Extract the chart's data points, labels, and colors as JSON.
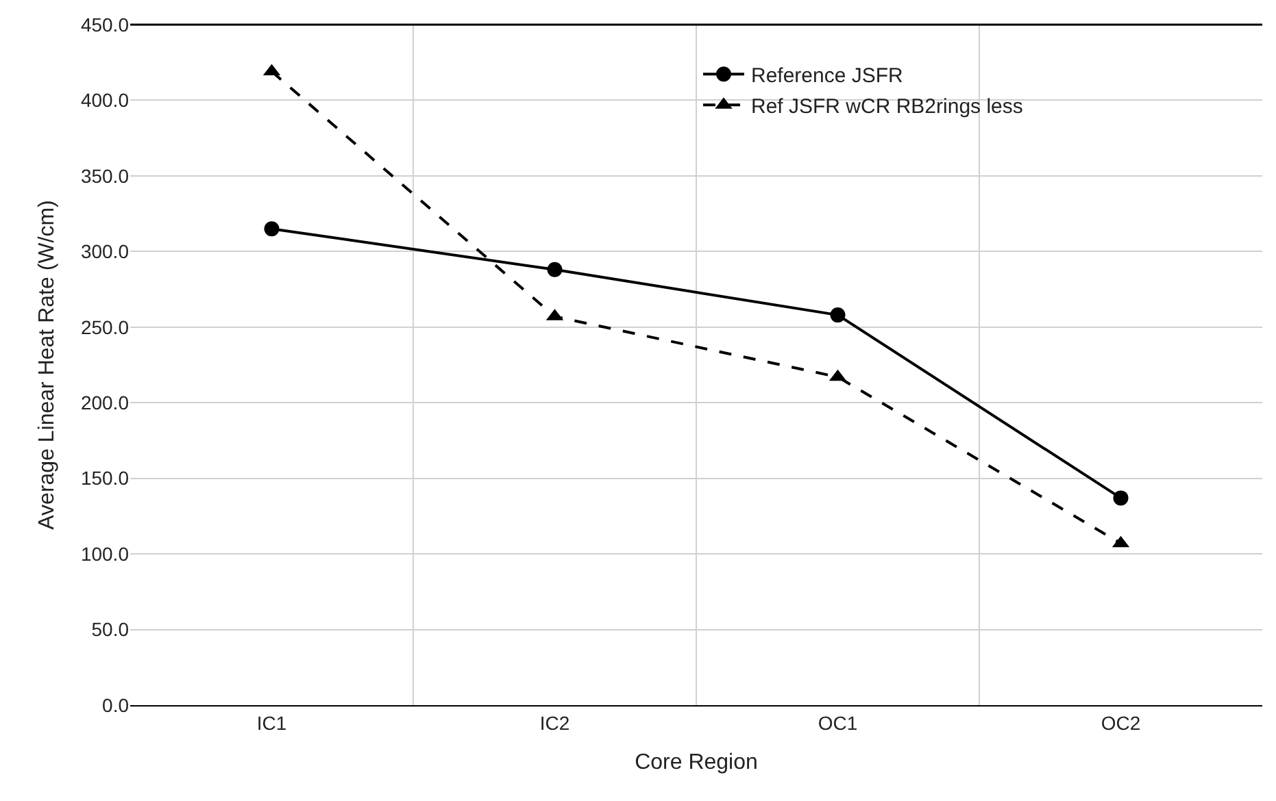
{
  "chart_data": {
    "type": "line",
    "xlabel": "Core Region",
    "ylabel": "Average Linear Heat Rate (W/cm)",
    "categories": [
      "IC1",
      "IC2",
      "OC1",
      "OC2"
    ],
    "series": [
      {
        "name": "Reference JSFR",
        "color": "#000000",
        "values": [
          315,
          288,
          258,
          137
        ],
        "marker": "circle",
        "line_style": "solid"
      },
      {
        "name": "Ref JSFR wCR RB2rings less",
        "color": "#000000",
        "values": [
          419,
          257,
          217,
          107
        ],
        "marker": "triangle",
        "line_style": "dashed"
      }
    ],
    "ylim": [
      0,
      450
    ],
    "yticks": [
      {
        "value": 0,
        "label": "0.0"
      },
      {
        "value": 50,
        "label": "50.0"
      },
      {
        "value": 100,
        "label": "100.0"
      },
      {
        "value": 150,
        "label": "150.0"
      },
      {
        "value": 200,
        "label": "200.0"
      },
      {
        "value": 250,
        "label": "250.0"
      },
      {
        "value": 300,
        "label": "300.0"
      },
      {
        "value": 350,
        "label": "350.0"
      },
      {
        "value": 400,
        "label": "400.0"
      },
      {
        "value": 450,
        "label": "450.0"
      }
    ],
    "grid": true,
    "legend": "top"
  }
}
